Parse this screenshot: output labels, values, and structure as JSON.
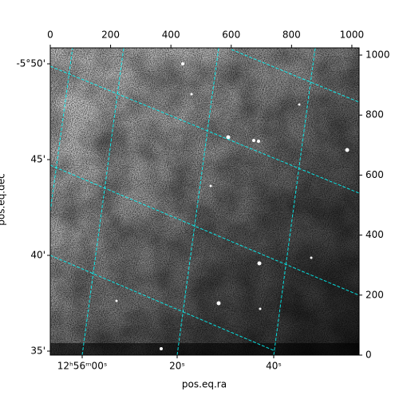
{
  "chart_data": {
    "type": "image",
    "xlabel": "pos.eq.ra",
    "ylabel": "pos.eq.dec",
    "xlim": [
      0,
      1024
    ],
    "ylim": [
      0,
      1024
    ],
    "xticks": [
      0,
      200,
      400,
      600,
      800,
      1000
    ],
    "yticks": [
      0,
      200,
      400,
      600,
      800,
      1000
    ],
    "ra_ticks": [
      "12ʰ56ᵐ00ˢ",
      "20ˢ",
      "40ˢ"
    ],
    "dec_ticks": [
      "-5°50'",
      "45'",
      "40'",
      "35'"
    ]
  }
}
